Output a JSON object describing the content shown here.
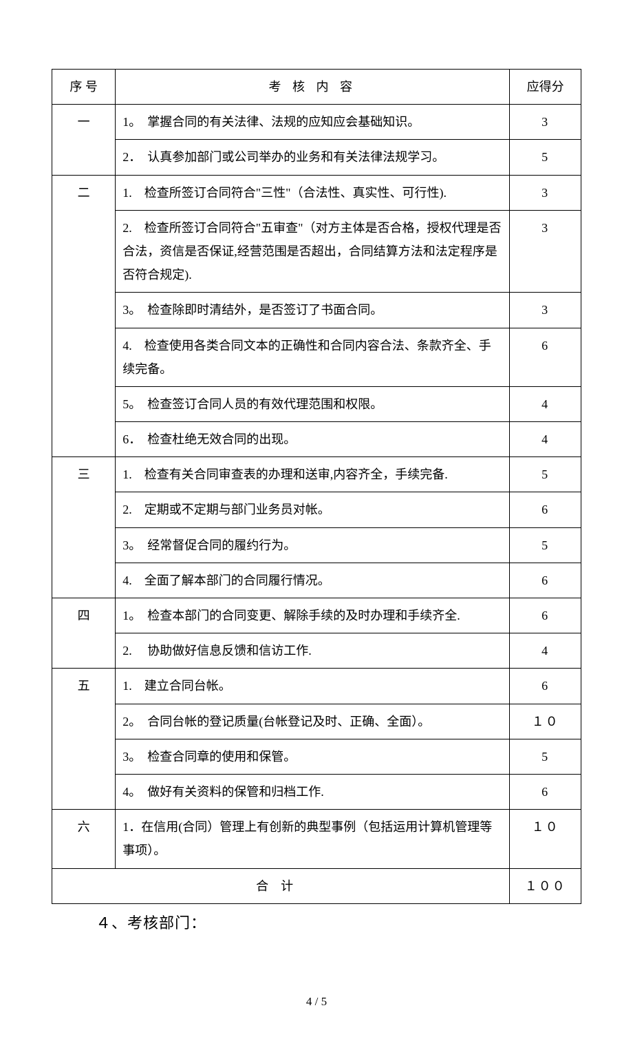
{
  "header": {
    "col1": "序 号",
    "col2": "考 核 内 容",
    "col3": "应得分"
  },
  "sections": {
    "s1": {
      "label": "一"
    },
    "s2": {
      "label": "二"
    },
    "s3": {
      "label": "三"
    },
    "s4": {
      "label": "四"
    },
    "s5": {
      "label": "五"
    },
    "s6": {
      "label": "六"
    }
  },
  "rows": {
    "r1": {
      "content": "1。　掌握合同的有关法律、法规的应知应会基础知识。",
      "score": "3"
    },
    "r2": {
      "content": "2．　认真参加部门或公司举办的业务和有关法律法规学习。",
      "score": "5"
    },
    "r3": {
      "content": "1.　检查所签订合同符合\"三性\"（合法性、真实性、可行性).",
      "score": "3"
    },
    "r4": {
      "content": "2.　检查所签订合同符合\"五审查\"（对方主体是否合格，授权代理是否合法，资信是否保证,经营范围是否超出，合同结算方法和法定程序是否符合规定).",
      "score": "3"
    },
    "r5": {
      "content": "3。　检查除即时清结外，是否签订了书面合同。",
      "score": "3"
    },
    "r6": {
      "content": "4.　检查使用各类合同文本的正确性和合同内容合法、条款齐全、手续完备。",
      "score": "6"
    },
    "r7": {
      "content": "5。　检查签订合同人员的有效代理范围和权限。",
      "score": "4"
    },
    "r8": {
      "content": "6．　检查杜绝无效合同的出现。",
      "score": "4"
    },
    "r9": {
      "content": "1.　检查有关合同审查表的办理和送审,内容齐全，手续完备.",
      "score": "5"
    },
    "r10": {
      "content": "2.　定期或不定期与部门业务员对帐。",
      "score": "6"
    },
    "r11": {
      "content": "3。　经常督促合同的履约行为。",
      "score": "5"
    },
    "r12": {
      "content": "4.　全面了解本部门的合同履行情况。",
      "score": "6"
    },
    "r13": {
      "content": "1。　检查本部门的合同变更、解除手续的及时办理和手续齐全.",
      "score": "6"
    },
    "r14": {
      "content": "2.　 协助做好信息反馈和信访工作.",
      "score": "4"
    },
    "r15": {
      "content": "1.　建立合同台帐。",
      "score": "6"
    },
    "r16": {
      "content": "2。　合同台帐的登记质量(台帐登记及时、正确、全面）。",
      "score": "１０"
    },
    "r17": {
      "content": "3。　检查合同章的使用和保管。",
      "score": "5"
    },
    "r18": {
      "content": "4。　做好有关资料的保管和归档工作.",
      "score": "6"
    },
    "r19": {
      "content": "1．在信用(合同）管理上有创新的典型事例（包括运用计算机管理等事项）。",
      "score": "１０"
    }
  },
  "footer": {
    "label": "合计",
    "total": "１００"
  },
  "after_text": "４、考核部门：",
  "page_number": "4 / 5",
  "style": {
    "font_family": "SimSun",
    "font_size_cell": 18,
    "font_size_footer_text": 22,
    "border_color": "#000000",
    "background": "#ffffff",
    "col_widths_pct": [
      12,
      74.5,
      13.5
    ]
  }
}
